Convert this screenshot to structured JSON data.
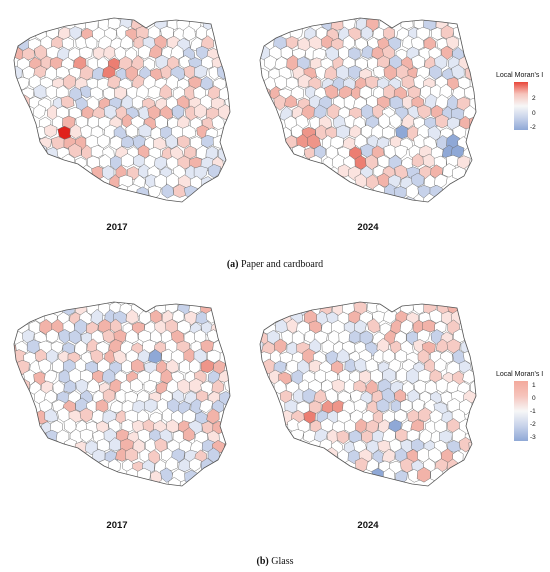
{
  "panels": [
    {
      "caption_letter": "(a)",
      "caption_text": " Paper and cardboard",
      "years": [
        "2017",
        "2024"
      ],
      "legend": {
        "title": "Local Moran's I",
        "ticks": [
          "2",
          "0",
          "-2"
        ],
        "colors": [
          "#e8473a",
          "#f6c4bc",
          "#f7f7f7",
          "#c7d2ea",
          "#8fa8d6"
        ]
      }
    },
    {
      "caption_letter": "(b)",
      "caption_text": " Glass",
      "years": [
        "2017",
        "2024"
      ],
      "legend": {
        "title": "Local Moran's I",
        "ticks": [
          "1",
          "0",
          "-1",
          "-2",
          "-3"
        ],
        "colors": [
          "#f3a99c",
          "#f6c4bc",
          "#f7f7f7",
          "#c7d2ea",
          "#8fa8d6"
        ]
      }
    }
  ]
}
